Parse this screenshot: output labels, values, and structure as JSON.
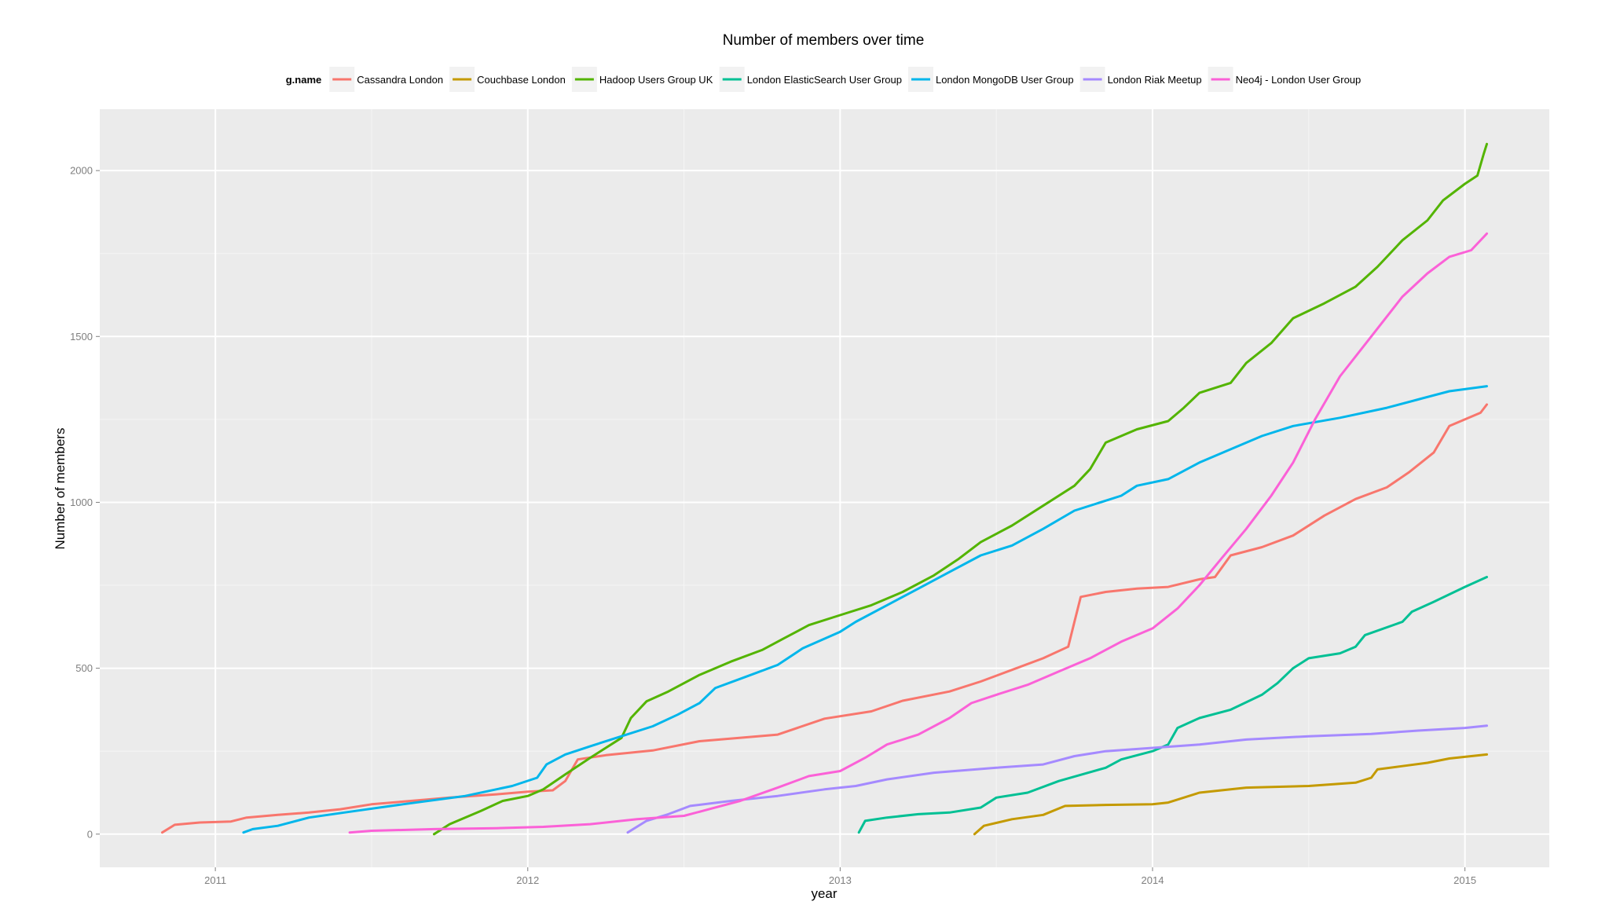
{
  "chart_data": {
    "type": "line",
    "title": "Number of members over time",
    "xlabel": "year",
    "ylabel": "Number of members",
    "xlim": [
      2010.63,
      2015.27
    ],
    "ylim": [
      -100,
      2185
    ],
    "x_ticks": [
      2011,
      2012,
      2013,
      2014,
      2015
    ],
    "x_tick_labels": [
      "2011",
      "2012",
      "2013",
      "2014",
      "2015"
    ],
    "y_ticks": [
      0,
      500,
      1000,
      1500,
      2000
    ],
    "y_tick_labels": [
      "0",
      "500",
      "1000",
      "1500",
      "2000"
    ],
    "grid": true,
    "legend_title": "g.name",
    "legend_position": "top",
    "series": [
      {
        "name": "Cassandra London",
        "color": "#F8766D",
        "points": [
          [
            2010.83,
            5
          ],
          [
            2010.87,
            28
          ],
          [
            2010.95,
            35
          ],
          [
            2011.05,
            38
          ],
          [
            2011.1,
            50
          ],
          [
            2011.2,
            58
          ],
          [
            2011.3,
            65
          ],
          [
            2011.4,
            75
          ],
          [
            2011.5,
            90
          ],
          [
            2011.6,
            98
          ],
          [
            2011.75,
            110
          ],
          [
            2011.9,
            120
          ],
          [
            2012.0,
            128
          ],
          [
            2012.08,
            132
          ],
          [
            2012.12,
            160
          ],
          [
            2012.16,
            225
          ],
          [
            2012.25,
            238
          ],
          [
            2012.4,
            252
          ],
          [
            2012.55,
            280
          ],
          [
            2012.7,
            292
          ],
          [
            2012.8,
            300
          ],
          [
            2012.95,
            348
          ],
          [
            2013.1,
            370
          ],
          [
            2013.2,
            402
          ],
          [
            2013.35,
            430
          ],
          [
            2013.45,
            460
          ],
          [
            2013.55,
            495
          ],
          [
            2013.65,
            530
          ],
          [
            2013.73,
            565
          ],
          [
            2013.75,
            640
          ],
          [
            2013.77,
            715
          ],
          [
            2013.85,
            730
          ],
          [
            2013.95,
            740
          ],
          [
            2014.05,
            745
          ],
          [
            2014.15,
            768
          ],
          [
            2014.2,
            775
          ],
          [
            2014.25,
            840
          ],
          [
            2014.35,
            865
          ],
          [
            2014.45,
            900
          ],
          [
            2014.55,
            960
          ],
          [
            2014.65,
            1010
          ],
          [
            2014.75,
            1045
          ],
          [
            2014.82,
            1090
          ],
          [
            2014.9,
            1150
          ],
          [
            2014.95,
            1230
          ],
          [
            2015.05,
            1270
          ],
          [
            2015.07,
            1295
          ]
        ]
      },
      {
        "name": "Couchbase London",
        "color": "#C49A00",
        "points": [
          [
            2013.43,
            0
          ],
          [
            2013.46,
            25
          ],
          [
            2013.55,
            45
          ],
          [
            2013.65,
            58
          ],
          [
            2013.72,
            85
          ],
          [
            2013.85,
            88
          ],
          [
            2014.0,
            90
          ],
          [
            2014.05,
            95
          ],
          [
            2014.15,
            125
          ],
          [
            2014.3,
            140
          ],
          [
            2014.5,
            145
          ],
          [
            2014.65,
            155
          ],
          [
            2014.7,
            170
          ],
          [
            2014.72,
            195
          ],
          [
            2014.8,
            205
          ],
          [
            2014.88,
            215
          ],
          [
            2014.95,
            228
          ],
          [
            2015.07,
            240
          ]
        ]
      },
      {
        "name": "Hadoop Users Group UK",
        "color": "#53B400",
        "points": [
          [
            2011.7,
            0
          ],
          [
            2011.75,
            30
          ],
          [
            2011.85,
            70
          ],
          [
            2011.92,
            100
          ],
          [
            2012.0,
            115
          ],
          [
            2012.05,
            135
          ],
          [
            2012.12,
            180
          ],
          [
            2012.2,
            230
          ],
          [
            2012.3,
            290
          ],
          [
            2012.33,
            350
          ],
          [
            2012.38,
            400
          ],
          [
            2012.45,
            430
          ],
          [
            2012.55,
            480
          ],
          [
            2012.65,
            520
          ],
          [
            2012.75,
            555
          ],
          [
            2012.82,
            590
          ],
          [
            2012.9,
            630
          ],
          [
            2013.0,
            660
          ],
          [
            2013.1,
            690
          ],
          [
            2013.2,
            730
          ],
          [
            2013.3,
            780
          ],
          [
            2013.38,
            830
          ],
          [
            2013.45,
            880
          ],
          [
            2013.55,
            930
          ],
          [
            2013.65,
            990
          ],
          [
            2013.75,
            1050
          ],
          [
            2013.8,
            1100
          ],
          [
            2013.85,
            1180
          ],
          [
            2013.95,
            1220
          ],
          [
            2014.05,
            1245
          ],
          [
            2014.1,
            1285
          ],
          [
            2014.15,
            1330
          ],
          [
            2014.25,
            1360
          ],
          [
            2014.3,
            1420
          ],
          [
            2014.38,
            1480
          ],
          [
            2014.45,
            1555
          ],
          [
            2014.55,
            1600
          ],
          [
            2014.65,
            1650
          ],
          [
            2014.72,
            1710
          ],
          [
            2014.8,
            1790
          ],
          [
            2014.88,
            1850
          ],
          [
            2014.93,
            1910
          ],
          [
            2015.0,
            1960
          ],
          [
            2015.04,
            1985
          ],
          [
            2015.06,
            2050
          ],
          [
            2015.07,
            2080
          ]
        ]
      },
      {
        "name": "London ElasticSearch User Group",
        "color": "#00C094",
        "points": [
          [
            2013.06,
            5
          ],
          [
            2013.08,
            40
          ],
          [
            2013.15,
            50
          ],
          [
            2013.25,
            60
          ],
          [
            2013.35,
            65
          ],
          [
            2013.45,
            80
          ],
          [
            2013.5,
            110
          ],
          [
            2013.6,
            125
          ],
          [
            2013.7,
            160
          ],
          [
            2013.85,
            200
          ],
          [
            2013.9,
            225
          ],
          [
            2014.0,
            250
          ],
          [
            2014.05,
            270
          ],
          [
            2014.08,
            320
          ],
          [
            2014.15,
            350
          ],
          [
            2014.25,
            375
          ],
          [
            2014.35,
            420
          ],
          [
            2014.4,
            455
          ],
          [
            2014.45,
            500
          ],
          [
            2014.5,
            530
          ],
          [
            2014.6,
            545
          ],
          [
            2014.65,
            565
          ],
          [
            2014.68,
            600
          ],
          [
            2014.8,
            640
          ],
          [
            2014.83,
            670
          ],
          [
            2014.9,
            700
          ],
          [
            2015.0,
            745
          ],
          [
            2015.07,
            775
          ]
        ]
      },
      {
        "name": "London MongoDB User Group",
        "color": "#00B6EB",
        "points": [
          [
            2011.09,
            5
          ],
          [
            2011.12,
            15
          ],
          [
            2011.2,
            25
          ],
          [
            2011.3,
            50
          ],
          [
            2011.45,
            70
          ],
          [
            2011.6,
            90
          ],
          [
            2011.8,
            115
          ],
          [
            2011.95,
            145
          ],
          [
            2012.03,
            170
          ],
          [
            2012.06,
            210
          ],
          [
            2012.12,
            240
          ],
          [
            2012.2,
            265
          ],
          [
            2012.3,
            295
          ],
          [
            2012.4,
            325
          ],
          [
            2012.48,
            360
          ],
          [
            2012.55,
            395
          ],
          [
            2012.6,
            440
          ],
          [
            2012.7,
            475
          ],
          [
            2012.8,
            510
          ],
          [
            2012.88,
            560
          ],
          [
            2013.0,
            610
          ],
          [
            2013.05,
            640
          ],
          [
            2013.15,
            690
          ],
          [
            2013.25,
            740
          ],
          [
            2013.35,
            790
          ],
          [
            2013.45,
            840
          ],
          [
            2013.55,
            870
          ],
          [
            2013.65,
            920
          ],
          [
            2013.75,
            975
          ],
          [
            2013.9,
            1020
          ],
          [
            2013.95,
            1050
          ],
          [
            2014.05,
            1070
          ],
          [
            2014.15,
            1120
          ],
          [
            2014.25,
            1160
          ],
          [
            2014.35,
            1200
          ],
          [
            2014.45,
            1230
          ],
          [
            2014.6,
            1255
          ],
          [
            2014.75,
            1285
          ],
          [
            2014.85,
            1310
          ],
          [
            2014.95,
            1335
          ],
          [
            2015.07,
            1350
          ]
        ]
      },
      {
        "name": "London Riak Meetup",
        "color": "#A58AFF",
        "points": [
          [
            2012.32,
            5
          ],
          [
            2012.38,
            40
          ],
          [
            2012.45,
            60
          ],
          [
            2012.52,
            85
          ],
          [
            2012.65,
            100
          ],
          [
            2012.8,
            115
          ],
          [
            2012.95,
            135
          ],
          [
            2013.05,
            145
          ],
          [
            2013.15,
            165
          ],
          [
            2013.3,
            185
          ],
          [
            2013.5,
            200
          ],
          [
            2013.65,
            210
          ],
          [
            2013.75,
            235
          ],
          [
            2013.85,
            250
          ],
          [
            2014.0,
            260
          ],
          [
            2014.15,
            270
          ],
          [
            2014.3,
            285
          ],
          [
            2014.5,
            295
          ],
          [
            2014.7,
            302
          ],
          [
            2014.85,
            312
          ],
          [
            2015.0,
            320
          ],
          [
            2015.07,
            327
          ]
        ]
      },
      {
        "name": "Neo4j - London User Group",
        "color": "#FB61D7",
        "points": [
          [
            2011.43,
            5
          ],
          [
            2011.5,
            10
          ],
          [
            2011.7,
            15
          ],
          [
            2011.9,
            18
          ],
          [
            2012.05,
            22
          ],
          [
            2012.2,
            30
          ],
          [
            2012.35,
            45
          ],
          [
            2012.5,
            55
          ],
          [
            2012.58,
            75
          ],
          [
            2012.68,
            100
          ],
          [
            2012.8,
            140
          ],
          [
            2012.9,
            175
          ],
          [
            2013.0,
            190
          ],
          [
            2013.08,
            230
          ],
          [
            2013.15,
            270
          ],
          [
            2013.25,
            300
          ],
          [
            2013.35,
            350
          ],
          [
            2013.42,
            395
          ],
          [
            2013.5,
            420
          ],
          [
            2013.6,
            450
          ],
          [
            2013.7,
            490
          ],
          [
            2013.8,
            530
          ],
          [
            2013.9,
            580
          ],
          [
            2014.0,
            620
          ],
          [
            2014.08,
            680
          ],
          [
            2014.15,
            750
          ],
          [
            2014.22,
            830
          ],
          [
            2014.3,
            920
          ],
          [
            2014.38,
            1020
          ],
          [
            2014.45,
            1120
          ],
          [
            2014.52,
            1250
          ],
          [
            2014.6,
            1380
          ],
          [
            2014.7,
            1500
          ],
          [
            2014.8,
            1620
          ],
          [
            2014.88,
            1690
          ],
          [
            2014.95,
            1740
          ],
          [
            2015.02,
            1760
          ],
          [
            2015.07,
            1810
          ]
        ]
      }
    ]
  }
}
